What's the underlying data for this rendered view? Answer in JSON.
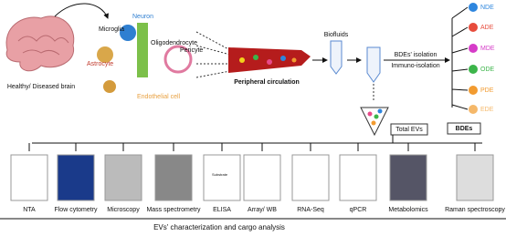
{
  "brain": {
    "label": "Healthy/ Diseased brain"
  },
  "cells": [
    "Neuron",
    "Microglia",
    "Astrocyte",
    "Oligodendrocyte",
    "Pericyte",
    "Endothelial cell"
  ],
  "circulation": "Peripheral circulation",
  "biofluids": "Biofluids",
  "isolation": {
    "title": "BDEs' isolation",
    "method": "Immuno-isolation",
    "total": "Total EVs",
    "bdes": "BDEs"
  },
  "bde_types": [
    "NDE",
    "ADE",
    "MDE",
    "ODE",
    "PDE",
    "EDE"
  ],
  "methods": [
    "NTA",
    "Flow cytometry",
    "Microscopy",
    "Mass spectrometry",
    "ELISA",
    "Array/ WB",
    "RNA-Seq",
    "qPCR",
    "Metabolomics",
    "Raman spectroscopy"
  ],
  "substrate": "Substrate",
  "footer": "EVs' characterization and cargo analysis"
}
